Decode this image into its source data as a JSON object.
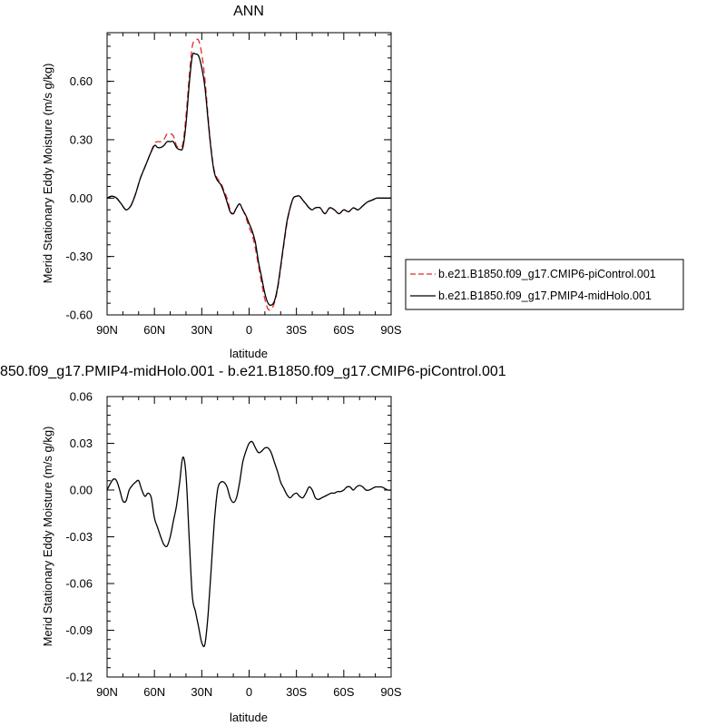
{
  "chart_data": [
    {
      "type": "line",
      "title": "ANN",
      "xlabel": "latitude",
      "ylabel": "Merid Stationary Eddy Moisture (m/s g/kg)",
      "xlim": [
        90,
        -90
      ],
      "ylim": [
        -0.6,
        0.85
      ],
      "x_ticks": [
        {
          "value": 90,
          "label": "90N"
        },
        {
          "value": 60,
          "label": "60N"
        },
        {
          "value": 30,
          "label": "30N"
        },
        {
          "value": 0,
          "label": "0"
        },
        {
          "value": -30,
          "label": "30S"
        },
        {
          "value": -60,
          "label": "60S"
        },
        {
          "value": -90,
          "label": "90S"
        }
      ],
      "y_ticks": [
        {
          "value": 0.6,
          "label": "0.60"
        },
        {
          "value": 0.3,
          "label": "0.30"
        },
        {
          "value": 0,
          "label": "0.00"
        },
        {
          "value": -0.3,
          "label": "-0.30"
        },
        {
          "value": -0.6,
          "label": "-0.60"
        }
      ],
      "legend_position": "right",
      "series": [
        {
          "name": "b.e21.B1850.f09_g17.CMIP6-piControl.001",
          "color": "#e8282b",
          "dash": "dashed",
          "x": [
            90,
            87,
            84,
            81,
            78,
            75,
            72,
            69,
            66,
            63,
            60,
            58,
            56,
            54,
            52,
            50,
            48,
            46,
            44,
            42,
            40,
            38,
            36,
            34,
            32,
            30,
            28,
            26,
            24,
            22,
            20,
            18,
            16,
            14,
            12,
            10,
            8,
            6,
            4,
            2,
            0,
            -2,
            -4,
            -6,
            -8,
            -10,
            -12,
            -14,
            -16,
            -18,
            -20,
            -22,
            -24,
            -26,
            -28,
            -30,
            -32,
            -34,
            -36,
            -38,
            -40,
            -42,
            -45,
            -48,
            -51,
            -54,
            -57,
            -60,
            -63,
            -66,
            -69,
            -72,
            -75,
            -78,
            -81,
            -84,
            -87,
            -90
          ],
          "y": [
            0.0,
            0.01,
            0.0,
            -0.03,
            -0.06,
            -0.04,
            0.02,
            0.1,
            0.16,
            0.22,
            0.28,
            0.29,
            0.29,
            0.3,
            0.33,
            0.33,
            0.32,
            0.27,
            0.26,
            0.28,
            0.42,
            0.62,
            0.78,
            0.81,
            0.81,
            0.74,
            0.61,
            0.42,
            0.25,
            0.14,
            0.1,
            0.08,
            0.04,
            0.0,
            -0.06,
            -0.08,
            -0.05,
            -0.03,
            -0.06,
            -0.1,
            -0.15,
            -0.19,
            -0.26,
            -0.35,
            -0.44,
            -0.52,
            -0.57,
            -0.57,
            -0.54,
            -0.47,
            -0.36,
            -0.24,
            -0.13,
            -0.05,
            0.0,
            0.01,
            0.01,
            -0.01,
            -0.03,
            -0.05,
            -0.06,
            -0.05,
            -0.05,
            -0.08,
            -0.05,
            -0.06,
            -0.08,
            -0.06,
            -0.07,
            -0.05,
            -0.06,
            -0.04,
            -0.02,
            -0.01,
            0.0,
            0.0,
            0.0,
            0.0
          ]
        },
        {
          "name": "b.e21.B1850.f09_g17.PMIP4-midHolo.001",
          "color": "#000000",
          "dash": "solid",
          "x": [
            90,
            87,
            84,
            81,
            78,
            75,
            72,
            69,
            66,
            63,
            60,
            58,
            56,
            54,
            52,
            50,
            48,
            46,
            44,
            42,
            40,
            38,
            36,
            34,
            32,
            30,
            28,
            26,
            24,
            22,
            20,
            18,
            16,
            14,
            12,
            10,
            8,
            6,
            4,
            2,
            0,
            -2,
            -4,
            -6,
            -8,
            -10,
            -12,
            -14,
            -16,
            -18,
            -20,
            -22,
            -24,
            -26,
            -28,
            -30,
            -32,
            -34,
            -36,
            -38,
            -40,
            -42,
            -45,
            -48,
            -51,
            -54,
            -57,
            -60,
            -63,
            -66,
            -69,
            -72,
            -75,
            -78,
            -81,
            -84,
            -87,
            -90
          ],
          "y": [
            0.0,
            0.01,
            0.0,
            -0.03,
            -0.06,
            -0.04,
            0.02,
            0.1,
            0.16,
            0.22,
            0.27,
            0.26,
            0.26,
            0.27,
            0.29,
            0.29,
            0.29,
            0.26,
            0.25,
            0.26,
            0.38,
            0.58,
            0.73,
            0.74,
            0.73,
            0.67,
            0.57,
            0.4,
            0.24,
            0.13,
            0.09,
            0.07,
            0.03,
            -0.02,
            -0.07,
            -0.08,
            -0.05,
            -0.03,
            -0.06,
            -0.09,
            -0.13,
            -0.17,
            -0.23,
            -0.33,
            -0.41,
            -0.49,
            -0.54,
            -0.55,
            -0.53,
            -0.46,
            -0.35,
            -0.23,
            -0.12,
            -0.05,
            0.0,
            0.01,
            0.01,
            -0.01,
            -0.03,
            -0.05,
            -0.06,
            -0.05,
            -0.05,
            -0.08,
            -0.05,
            -0.06,
            -0.08,
            -0.06,
            -0.07,
            -0.05,
            -0.06,
            -0.04,
            -0.02,
            -0.01,
            0.0,
            0.0,
            0.0,
            0.0
          ]
        }
      ]
    },
    {
      "type": "line",
      "title": "850.f09_g17.PMIP4-midHolo.001 - b.e21.B1850.f09_g17.CMIP6-piControl.001",
      "xlabel": "latitude",
      "ylabel": "Merid Stationary Eddy Moisture (m/s g/kg)",
      "xlim": [
        90,
        -90
      ],
      "ylim": [
        -0.12,
        0.06
      ],
      "x_ticks": [
        {
          "value": 90,
          "label": "90N"
        },
        {
          "value": 60,
          "label": "60N"
        },
        {
          "value": 30,
          "label": "30N"
        },
        {
          "value": 0,
          "label": "0"
        },
        {
          "value": -30,
          "label": "30S"
        },
        {
          "value": -60,
          "label": "60S"
        },
        {
          "value": -90,
          "label": "90S"
        }
      ],
      "y_ticks": [
        {
          "value": 0.06,
          "label": "0.06"
        },
        {
          "value": 0.03,
          "label": "0.03"
        },
        {
          "value": 0,
          "label": "0.00"
        },
        {
          "value": -0.03,
          "label": "-0.03"
        },
        {
          "value": -0.06,
          "label": "-0.06"
        },
        {
          "value": -0.09,
          "label": "-0.09"
        },
        {
          "value": -0.12,
          "label": "-0.12"
        }
      ],
      "series": [
        {
          "color": "#000000",
          "dash": "solid",
          "x": [
            90,
            88,
            86,
            84,
            82,
            80,
            78,
            76,
            74,
            72,
            70,
            68,
            66,
            64,
            62,
            60,
            58,
            56,
            54,
            52,
            50,
            48,
            46,
            44,
            42,
            40,
            38,
            36,
            34,
            32,
            30,
            28,
            26,
            24,
            22,
            20,
            18,
            16,
            14,
            12,
            10,
            8,
            6,
            4,
            2,
            0,
            -2,
            -4,
            -6,
            -8,
            -10,
            -12,
            -14,
            -16,
            -18,
            -20,
            -22,
            -24,
            -26,
            -28,
            -30,
            -32,
            -34,
            -36,
            -38,
            -40,
            -42,
            -44,
            -46,
            -48,
            -50,
            -52,
            -54,
            -56,
            -58,
            -60,
            -62,
            -64,
            -66,
            -68,
            -70,
            -72,
            -74,
            -76,
            -78,
            -80,
            -82,
            -84,
            -86,
            -88,
            -90
          ],
          "y": [
            0.0,
            0.004,
            0.007,
            0.006,
            0.0,
            -0.007,
            -0.007,
            0.0,
            0.003,
            0.005,
            0.006,
            0.0,
            -0.004,
            -0.002,
            -0.005,
            -0.018,
            -0.024,
            -0.03,
            -0.035,
            -0.036,
            -0.03,
            -0.02,
            -0.01,
            0.005,
            0.021,
            0.01,
            -0.03,
            -0.068,
            -0.078,
            -0.088,
            -0.098,
            -0.099,
            -0.08,
            -0.05,
            -0.02,
            0.0,
            0.005,
            0.005,
            0.002,
            -0.005,
            -0.008,
            -0.005,
            0.005,
            0.018,
            0.025,
            0.03,
            0.031,
            0.027,
            0.024,
            0.025,
            0.027,
            0.027,
            0.024,
            0.018,
            0.012,
            0.005,
            0.001,
            -0.003,
            -0.005,
            -0.003,
            -0.002,
            -0.004,
            -0.005,
            -0.002,
            0.002,
            0.0,
            -0.005,
            -0.006,
            -0.005,
            -0.004,
            -0.003,
            -0.002,
            -0.002,
            -0.001,
            -0.001,
            0.0,
            0.002,
            0.002,
            0.0,
            0.002,
            0.003,
            0.002,
            0.0,
            0.0,
            0.001,
            0.002,
            0.002,
            0.002,
            0.001,
            0.0,
            0.0
          ]
        }
      ]
    }
  ]
}
